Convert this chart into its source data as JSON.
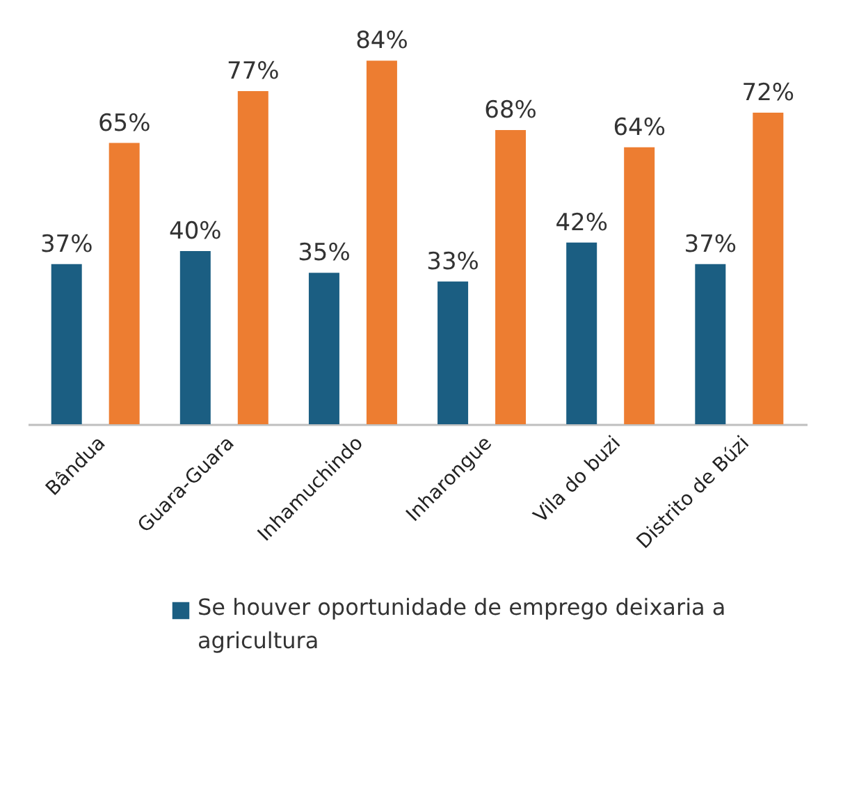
{
  "chart_data": {
    "type": "bar",
    "categories": [
      "Bândua",
      "Guara-Guara",
      "Inhamuchindo",
      "Inharongue",
      "Vila do buzi",
      "Distrito de Búzi"
    ],
    "series": [
      {
        "name": "Se houver oportunidade de emprego deixaria a agricultura",
        "color": "#1b5e82",
        "values": [
          37,
          40,
          35,
          33,
          42,
          37
        ],
        "value_labels": [
          "37%",
          "40%",
          "35%",
          "33%",
          "42%",
          "37%"
        ]
      },
      {
        "color": "#ed7d31",
        "values": [
          65,
          77,
          84,
          68,
          64,
          72
        ],
        "value_labels": [
          "65%",
          "77%",
          "84%",
          "68%",
          "64%",
          "72%"
        ]
      }
    ],
    "legend": "bottom"
  }
}
